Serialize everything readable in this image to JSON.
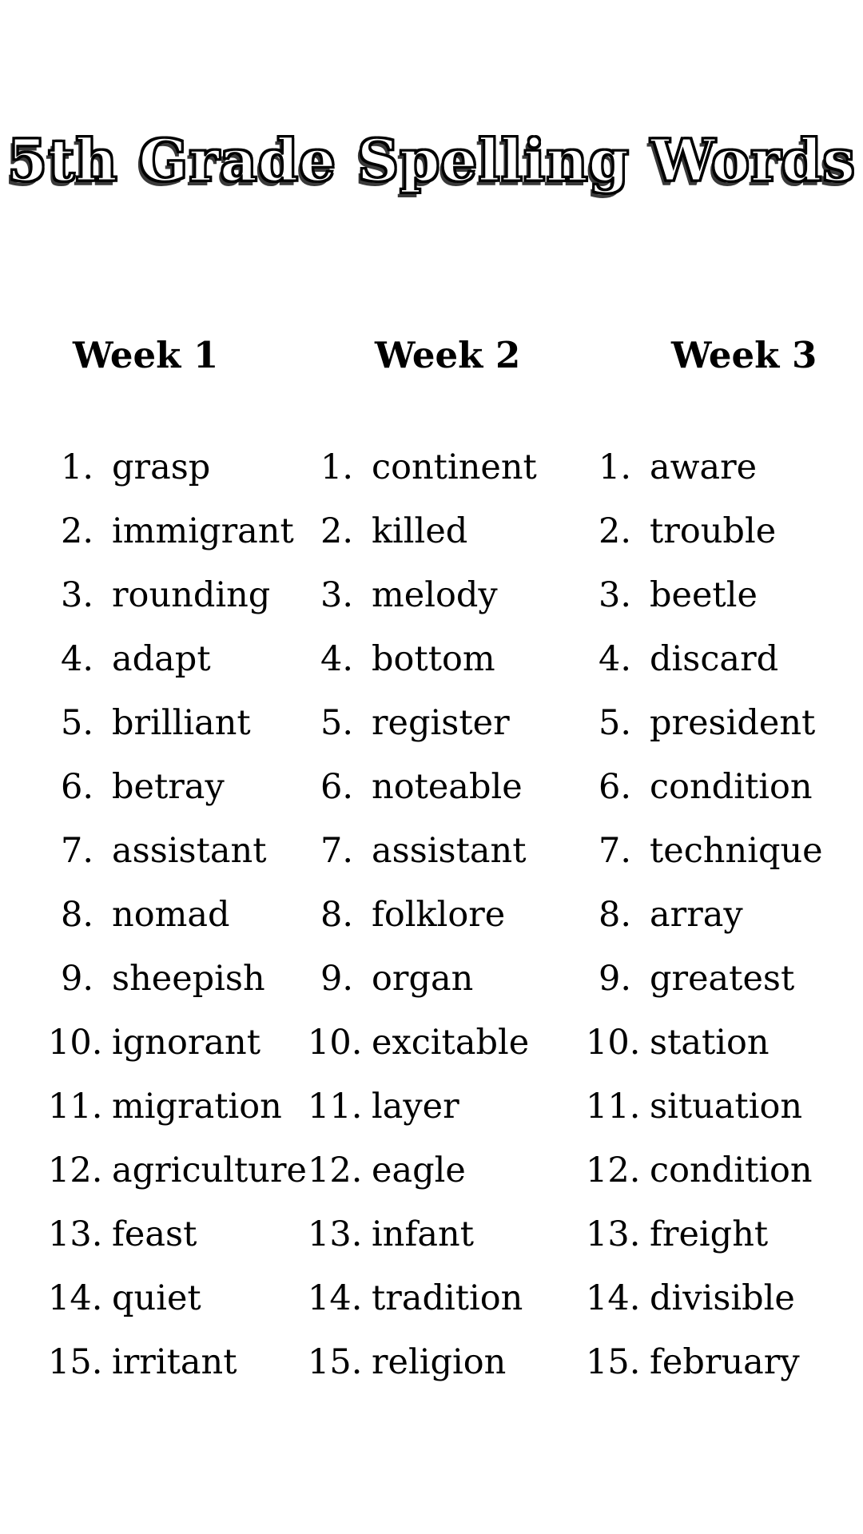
{
  "title": "5th Grade Spelling Words",
  "numbers": [
    "1.",
    "2.",
    "3.",
    "4.",
    "5.",
    "6.",
    "7.",
    "8.",
    "9.",
    "10.",
    "11.",
    "12.",
    "13.",
    "14.",
    "15."
  ],
  "columns": [
    {
      "header": "Week 1",
      "words": [
        "grasp",
        "immigrant",
        "rounding",
        "adapt",
        "brilliant",
        "betray",
        "assistant",
        "nomad",
        "sheepish",
        "ignorant",
        "migration",
        "agriculture",
        "feast",
        "quiet",
        "irritant"
      ]
    },
    {
      "header": "Week 2",
      "words": [
        "continent",
        "killed",
        "melody",
        "bottom",
        "register",
        "noteable",
        "assistant",
        "folklore",
        "organ",
        "excitable",
        "layer",
        "eagle",
        "infant",
        "tradition",
        "religion"
      ]
    },
    {
      "header": "Week 3",
      "words": [
        "aware",
        "trouble",
        "beetle",
        "discard",
        "president",
        "condition",
        "technique",
        "array",
        "greatest",
        "station",
        "situation",
        "condition",
        "freight",
        "divisible",
        "february"
      ]
    }
  ]
}
